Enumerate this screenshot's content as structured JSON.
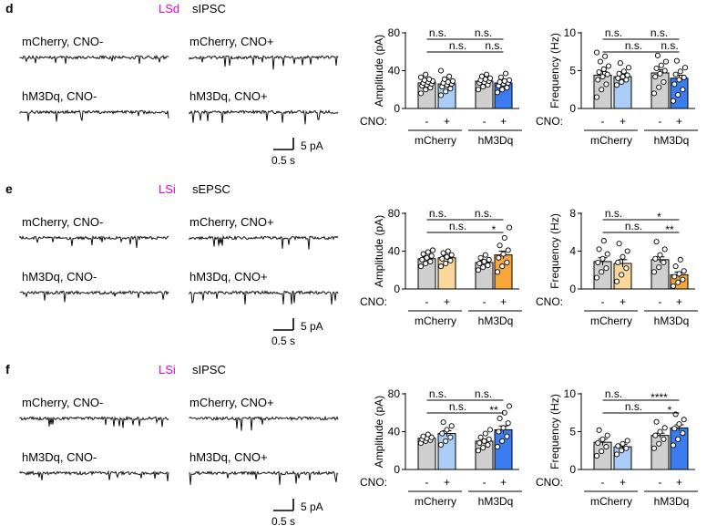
{
  "figure": {
    "colors": {
      "trace": "#111111",
      "region": "#e000e0",
      "gray_bar": "#cfcfcf",
      "lightblue_bar": "#a9cdf7",
      "blue_bar": "#3b7cf0",
      "lightorange_bar": "#fbd79b",
      "orange_bar": "#f7a63a"
    },
    "axis": {
      "cno_label": "CNO:",
      "minus": "-",
      "plus": "+",
      "group1": "mCherry",
      "group2": "hM3Dq",
      "amp_label": "Amplitude (pA)",
      "freq_label": "Frequency (Hz)"
    },
    "trace_labels": [
      "mCherry, CNO-",
      "mCherry, CNO+",
      "hM3Dq, CNO-",
      "hM3Dq, CNO+"
    ],
    "scale": {
      "y": "5 pA",
      "x": "0.5 s"
    },
    "panels": [
      {
        "letter": "d",
        "region": "LSd",
        "type": "sIPSC",
        "palette": "blue",
        "amp": {
          "ylim": [
            0,
            80
          ],
          "ticks": [
            "0",
            "40",
            "80"
          ],
          "sig": {
            "top_left": "n.s.",
            "top_right": "n.s.",
            "bottom_left": "n.s.",
            "bottom_right": "n.s."
          }
        },
        "freq": {
          "ylim": [
            0,
            10
          ],
          "ticks": [
            "0",
            "5",
            "10"
          ],
          "sig": {
            "top_left": "n.s.",
            "top_right": "n.s.",
            "bottom_left": "n.s.",
            "bottom_right": "n.s."
          }
        }
      },
      {
        "letter": "e",
        "region": "LSi",
        "type": "sEPSC",
        "palette": "orange",
        "amp": {
          "ylim": [
            0,
            80
          ],
          "ticks": [
            "0",
            "40",
            "80"
          ],
          "sig": {
            "top_left": "n.s.",
            "top_right": "n.s.",
            "bottom_left": "n.s.",
            "bottom_right": "*"
          }
        },
        "freq": {
          "ylim": [
            0,
            8
          ],
          "ticks": [
            "0",
            "4",
            "8"
          ],
          "sig": {
            "top_left": "n.s.",
            "top_right": "*",
            "bottom_left": "n.s.",
            "bottom_right": "**"
          }
        }
      },
      {
        "letter": "f",
        "region": "LSi",
        "type": "sIPSC",
        "palette": "blue",
        "amp": {
          "ylim": [
            0,
            80
          ],
          "ticks": [
            "0",
            "40",
            "80"
          ],
          "sig": {
            "top_left": "n.s.",
            "top_right": "n.s.",
            "bottom_left": "n.s.",
            "bottom_right": "**"
          }
        },
        "freq": {
          "ylim": [
            0,
            10
          ],
          "ticks": [
            "0",
            "5",
            "10"
          ],
          "sig": {
            "top_left": "n.s.",
            "top_right": "****",
            "bottom_left": "n.s.",
            "bottom_right": "*"
          }
        }
      }
    ]
  },
  "chart_data": [
    {
      "type": "bar",
      "title": "LSd sIPSC Amplitude",
      "ylabel": "Amplitude (pA)",
      "ylim": [
        0,
        80
      ],
      "categories": [
        "mCherry CNO-",
        "mCherry CNO+",
        "hM3Dq CNO-",
        "hM3Dq CNO+"
      ],
      "values": [
        27,
        26,
        29,
        27
      ],
      "errors": [
        2,
        2,
        2,
        2
      ],
      "points": [
        [
          16,
          20,
          22,
          24,
          25,
          26,
          27,
          28,
          29,
          30,
          31,
          33,
          36
        ],
        [
          14,
          18,
          21,
          23,
          25,
          26,
          27,
          28,
          29,
          31,
          34,
          40
        ],
        [
          20,
          23,
          25,
          27,
          28,
          29,
          30,
          31,
          32,
          34,
          36
        ],
        [
          17,
          20,
          22,
          24,
          26,
          27,
          28,
          29,
          30,
          33,
          37
        ]
      ]
    },
    {
      "type": "bar",
      "title": "LSd sIPSC Frequency",
      "ylabel": "Frequency (Hz)",
      "ylim": [
        0,
        10
      ],
      "categories": [
        "mCherry CNO-",
        "mCherry CNO+",
        "hM3Dq CNO-",
        "hM3Dq CNO+"
      ],
      "values": [
        4.4,
        4.2,
        4.7,
        4.0
      ],
      "errors": [
        0.5,
        0.3,
        0.4,
        0.4
      ],
      "points": [
        [
          1.5,
          2.5,
          3.2,
          3.8,
          4.2,
          4.5,
          4.8,
          5.2,
          5.6,
          6.2,
          6.9,
          7.4
        ],
        [
          3.1,
          3.5,
          3.8,
          4.0,
          4.2,
          4.4,
          4.6,
          4.9,
          5.4,
          6.0
        ],
        [
          2.0,
          2.8,
          3.5,
          4.2,
          4.6,
          5.0,
          5.3,
          5.7,
          6.2,
          7.0
        ],
        [
          1.0,
          1.8,
          2.5,
          3.2,
          3.8,
          4.1,
          4.5,
          4.9,
          5.4,
          6.3
        ]
      ]
    },
    {
      "type": "bar",
      "title": "LSi sEPSC Amplitude",
      "ylabel": "Amplitude (pA)",
      "ylim": [
        0,
        80
      ],
      "categories": [
        "mCherry CNO-",
        "mCherry CNO+",
        "hM3Dq CNO-",
        "hM3Dq CNO+"
      ],
      "values": [
        32,
        33,
        28,
        36
      ],
      "errors": [
        2,
        2,
        2,
        4
      ],
      "points": [
        [
          24,
          27,
          29,
          31,
          33,
          35,
          37,
          39,
          41
        ],
        [
          24,
          27,
          30,
          32,
          34,
          36,
          38,
          40
        ],
        [
          20,
          23,
          25,
          27,
          29,
          31,
          33,
          36
        ],
        [
          18,
          24,
          28,
          33,
          37,
          41,
          46,
          54,
          65
        ]
      ]
    },
    {
      "type": "bar",
      "title": "LSi sEPSC Frequency",
      "ylabel": "Frequency (Hz)",
      "ylim": [
        0,
        8
      ],
      "categories": [
        "mCherry CNO-",
        "mCherry CNO+",
        "hM3Dq CNO-",
        "hM3Dq CNO+"
      ],
      "values": [
        2.9,
        2.7,
        3.1,
        1.5
      ],
      "errors": [
        0.4,
        0.4,
        0.3,
        0.3
      ],
      "points": [
        [
          1.2,
          1.8,
          2.2,
          2.8,
          3.2,
          3.7,
          4.2,
          5.1
        ],
        [
          0.8,
          1.5,
          2.2,
          2.8,
          3.4,
          4.0,
          4.8
        ],
        [
          1.8,
          2.3,
          2.8,
          3.2,
          3.6,
          4.2,
          5.0
        ],
        [
          0.3,
          0.7,
          1.0,
          1.3,
          1.6,
          1.9,
          2.4,
          3.1
        ]
      ]
    },
    {
      "type": "bar",
      "title": "LSi sIPSC Amplitude",
      "ylabel": "Amplitude (pA)",
      "ylim": [
        0,
        80
      ],
      "categories": [
        "mCherry CNO-",
        "mCherry CNO+",
        "hM3Dq CNO-",
        "hM3Dq CNO+"
      ],
      "values": [
        33,
        38,
        30,
        42
      ],
      "errors": [
        1,
        3,
        2,
        4
      ],
      "points": [
        [
          28,
          30,
          31,
          32,
          33,
          34,
          35,
          37
        ],
        [
          26,
          30,
          34,
          38,
          42,
          46,
          50
        ],
        [
          20,
          23,
          26,
          28,
          30,
          32,
          34,
          38,
          42
        ],
        [
          24,
          30,
          35,
          40,
          44,
          49,
          54,
          60,
          67
        ]
      ]
    },
    {
      "type": "bar",
      "title": "LSi sIPSC Frequency",
      "ylabel": "Frequency (Hz)",
      "ylim": [
        0,
        10
      ],
      "categories": [
        "mCherry CNO-",
        "mCherry CNO+",
        "hM3Dq CNO-",
        "hM3Dq CNO+"
      ],
      "values": [
        3.6,
        3.0,
        4.5,
        5.5
      ],
      "errors": [
        0.4,
        0.3,
        0.3,
        0.4
      ],
      "points": [
        [
          1.8,
          2.4,
          3.0,
          3.5,
          4.0,
          4.5,
          5.2
        ],
        [
          2.0,
          2.5,
          2.8,
          3.1,
          3.4,
          3.8
        ],
        [
          2.8,
          3.4,
          4.0,
          4.5,
          5.0,
          5.5,
          6.3
        ],
        [
          3.2,
          4.0,
          4.8,
          5.4,
          6.0,
          6.6,
          7.3
        ]
      ]
    }
  ]
}
